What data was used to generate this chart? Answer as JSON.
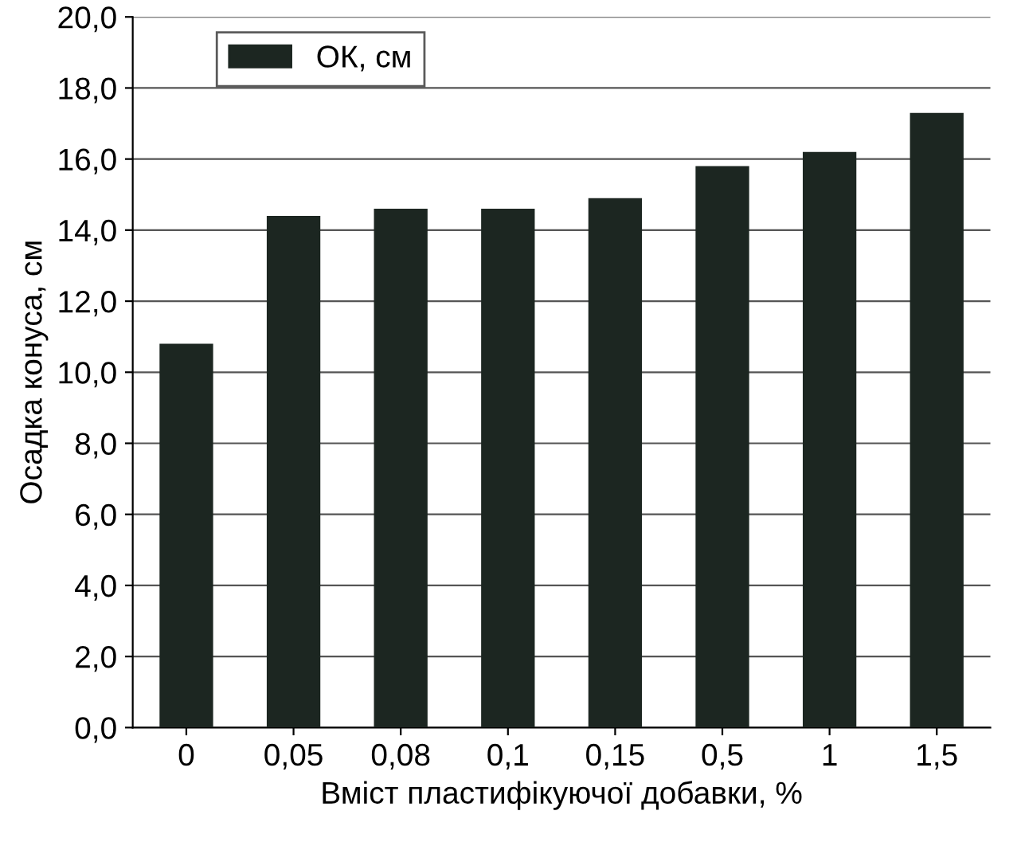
{
  "chart_data": {
    "type": "bar",
    "xlabel": "Вміст пластифікуючої добавки, %",
    "ylabel": "Осадка конуса, см",
    "categories": [
      "0",
      "0,05",
      "0,08",
      "0,1",
      "0,15",
      "0,5",
      "1",
      "1,5"
    ],
    "series": [
      {
        "name": "ОК, см",
        "color": "#1c2621",
        "values": [
          10.8,
          14.4,
          14.6,
          14.6,
          14.9,
          15.8,
          16.2,
          17.3
        ]
      }
    ],
    "ylim": [
      0,
      20
    ],
    "yticks": [
      {
        "value": 0,
        "label": "0,0"
      },
      {
        "value": 2,
        "label": "2,0"
      },
      {
        "value": 4,
        "label": "4,0"
      },
      {
        "value": 6,
        "label": "6,0"
      },
      {
        "value": 8,
        "label": "8,0"
      },
      {
        "value": 10,
        "label": "10,0"
      },
      {
        "value": 12,
        "label": "12,0"
      },
      {
        "value": 14,
        "label": "14,0"
      },
      {
        "value": 16,
        "label": "16,0"
      },
      {
        "value": 18,
        "label": "18,0"
      },
      {
        "value": 20,
        "label": "20,0"
      }
    ],
    "grid": "y",
    "legend": "top left"
  }
}
